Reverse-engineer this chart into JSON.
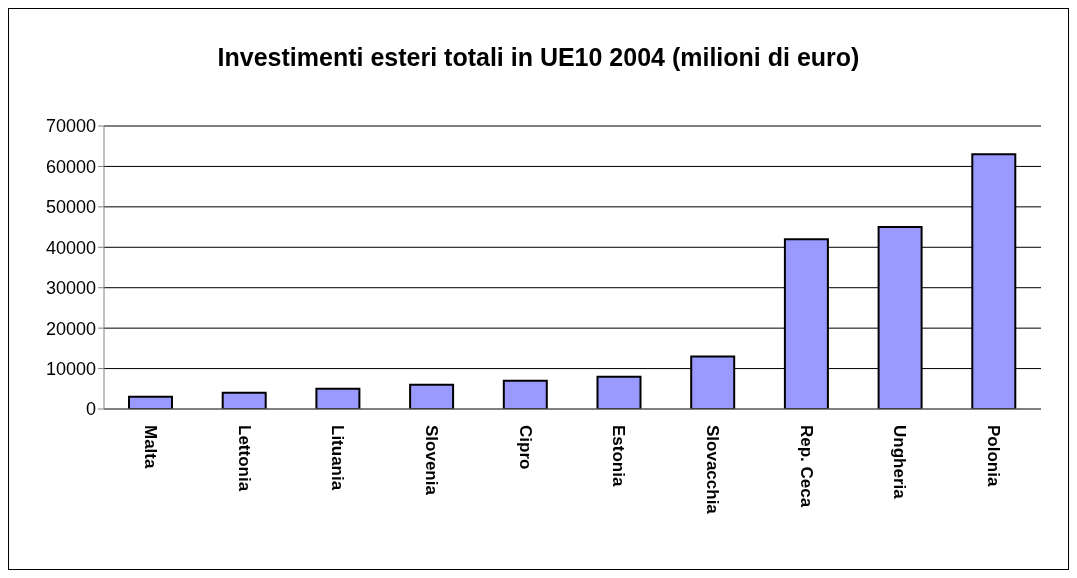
{
  "chart_data": {
    "type": "bar",
    "title": "Investimenti esteri totali in UE10 2004 (milioni di euro)",
    "categories": [
      "Malta",
      "Lettonia",
      "Lituania",
      "Slovenia",
      "Cipro",
      "Estonia",
      "Slovacchia",
      "Rep. Ceca",
      "Ungheria",
      "Polonia"
    ],
    "values": [
      3000,
      4000,
      5000,
      6000,
      7000,
      8000,
      13000,
      42000,
      45000,
      63000
    ],
    "color": "#9999ff",
    "ylim": [
      0,
      70000
    ],
    "yticks": [
      0,
      10000,
      20000,
      30000,
      40000,
      50000,
      60000,
      70000
    ],
    "grid": "y",
    "legend": false
  }
}
